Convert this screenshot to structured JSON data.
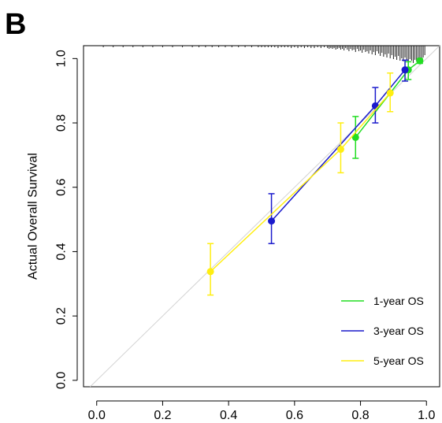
{
  "panel_label": "B",
  "chart_data": {
    "type": "line",
    "title": "",
    "xlabel": "",
    "ylabel": "Actual Overall Survival",
    "xlim": [
      -0.04,
      1.04
    ],
    "ylim": [
      -0.02,
      1.04
    ],
    "x_ticks": [
      0.0,
      0.2,
      0.4,
      0.6,
      0.8,
      1.0
    ],
    "x_tick_labels": [
      "0.0",
      "0.2",
      "0.4",
      "0.6",
      "0.8",
      "1.0"
    ],
    "y_ticks": [
      0.0,
      0.2,
      0.4,
      0.6,
      0.8,
      1.0
    ],
    "y_tick_labels": [
      "0.0",
      "0.2",
      "0.4",
      "0.6",
      "0.8",
      "1.0"
    ],
    "grid": false,
    "legend_position": "bottom-right",
    "reference_line": {
      "from": [
        0,
        0
      ],
      "to": [
        1,
        1
      ],
      "color": "#d3d3d3"
    },
    "series": [
      {
        "name": "1-year OS",
        "color": "#22dd22",
        "points": [
          {
            "x": 0.785,
            "y": 0.755,
            "lo": 0.69,
            "hi": 0.82
          },
          {
            "x": 0.945,
            "y": 0.965,
            "lo": 0.935,
            "hi": 0.99
          },
          {
            "x": 0.98,
            "y": 0.993,
            "lo": 0.985,
            "hi": 1.0
          }
        ]
      },
      {
        "name": "3-year OS",
        "color": "#1a1acc",
        "points": [
          {
            "x": 0.53,
            "y": 0.495,
            "lo": 0.425,
            "hi": 0.58
          },
          {
            "x": 0.845,
            "y": 0.853,
            "lo": 0.8,
            "hi": 0.91
          },
          {
            "x": 0.935,
            "y": 0.965,
            "lo": 0.93,
            "hi": 0.995
          }
        ]
      },
      {
        "name": "5-year OS",
        "color": "#ffee11",
        "points": [
          {
            "x": 0.345,
            "y": 0.338,
            "lo": 0.265,
            "hi": 0.425
          },
          {
            "x": 0.74,
            "y": 0.718,
            "lo": 0.645,
            "hi": 0.8
          },
          {
            "x": 0.89,
            "y": 0.893,
            "lo": 0.835,
            "hi": 0.955
          }
        ]
      }
    ],
    "rug": {
      "color": "#222222",
      "x": [
        0.02,
        0.05,
        0.08,
        0.11,
        0.14,
        0.17,
        0.2,
        0.23,
        0.26,
        0.29,
        0.31,
        0.33,
        0.35,
        0.37,
        0.39,
        0.41,
        0.43,
        0.45,
        0.47,
        0.49,
        0.5,
        0.51,
        0.52,
        0.53,
        0.54,
        0.55,
        0.56,
        0.57,
        0.58,
        0.59,
        0.6,
        0.61,
        0.62,
        0.63,
        0.64,
        0.65,
        0.66,
        0.67,
        0.68,
        0.69,
        0.7,
        0.705,
        0.71,
        0.715,
        0.72,
        0.725,
        0.73,
        0.735,
        0.74,
        0.745,
        0.75,
        0.755,
        0.76,
        0.765,
        0.77,
        0.775,
        0.78,
        0.785,
        0.79,
        0.795,
        0.8,
        0.805,
        0.81,
        0.815,
        0.82,
        0.825,
        0.83,
        0.835,
        0.84,
        0.845,
        0.85,
        0.855,
        0.86,
        0.865,
        0.87,
        0.875,
        0.88,
        0.885,
        0.89,
        0.895,
        0.9,
        0.905,
        0.91,
        0.915,
        0.92,
        0.925,
        0.93,
        0.935,
        0.94,
        0.945,
        0.95,
        0.955,
        0.96,
        0.965,
        0.97,
        0.975,
        0.98,
        0.985,
        0.99,
        0.995
      ],
      "h": [
        2,
        2,
        2,
        2,
        2,
        2,
        2,
        2,
        2,
        2,
        2,
        2,
        2,
        2,
        2,
        2,
        2,
        2,
        2,
        2,
        2,
        2,
        2,
        2,
        2,
        3,
        2,
        2,
        2,
        3,
        2,
        3,
        2,
        3,
        2,
        3,
        3,
        2,
        3,
        2,
        3,
        4,
        3,
        4,
        3,
        5,
        4,
        3,
        5,
        4,
        6,
        3,
        5,
        7,
        4,
        6,
        5,
        8,
        4,
        7,
        6,
        9,
        5,
        8,
        7,
        10,
        6,
        11,
        8,
        12,
        7,
        10,
        13,
        9,
        14,
        11,
        15,
        10,
        16,
        12,
        17,
        14,
        18,
        13,
        19,
        16,
        20,
        15,
        18,
        21,
        17,
        19,
        22,
        18,
        20,
        21,
        19,
        17,
        15,
        12
      ]
    }
  }
}
